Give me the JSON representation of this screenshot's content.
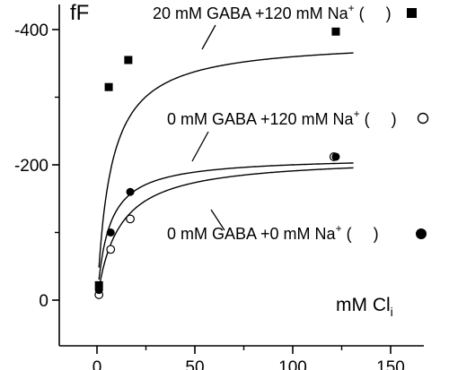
{
  "chart_data": {
    "type": "scatter",
    "ylabel": "fF",
    "xlabel": "mM Cl",
    "xlabel_sub": "i",
    "xlim": [
      0,
      150
    ],
    "ylim": [
      0,
      -400
    ],
    "xticks": [
      0,
      50,
      100,
      150
    ],
    "yticks": [
      {
        "value": -400,
        "label": "-400"
      },
      {
        "value": -200,
        "label": "-200"
      },
      {
        "value": 0,
        "label": "0"
      }
    ],
    "grid": false,
    "legend": "inline",
    "series": [
      {
        "name_text": "20 mM GABA +120 mM Na",
        "name_sup": "+",
        "name_suffix": "(",
        "name_end": ")",
        "marker": "square-filled",
        "points": [
          {
            "x": 1,
            "y": -22
          },
          {
            "x": 6,
            "y": -315
          },
          {
            "x": 16,
            "y": -355
          },
          {
            "x": 122,
            "y": -397
          }
        ],
        "fit": {
          "ymax": -385,
          "k": 7
        }
      },
      {
        "name_text": "0 mM GABA +120 mM Na",
        "name_sup": "+",
        "name_suffix": "(",
        "name_end": ")",
        "marker": "circle-open",
        "points": [
          {
            "x": 1,
            "y": -8
          },
          {
            "x": 7,
            "y": -75
          },
          {
            "x": 17,
            "y": -120
          },
          {
            "x": 121,
            "y": -212
          }
        ],
        "fit": {
          "ymax": -212,
          "k": 6
        }
      },
      {
        "name_text": "0 mM GABA +0 mM Na",
        "name_sup": "+",
        "name_suffix": "(",
        "name_end": ")",
        "marker": "circle-filled",
        "points": [
          {
            "x": 1,
            "y": -15
          },
          {
            "x": 7,
            "y": -100
          },
          {
            "x": 17,
            "y": -160
          },
          {
            "x": 122,
            "y": -212
          }
        ],
        "fit": {
          "ymax": -212,
          "k": 11
        }
      }
    ]
  }
}
